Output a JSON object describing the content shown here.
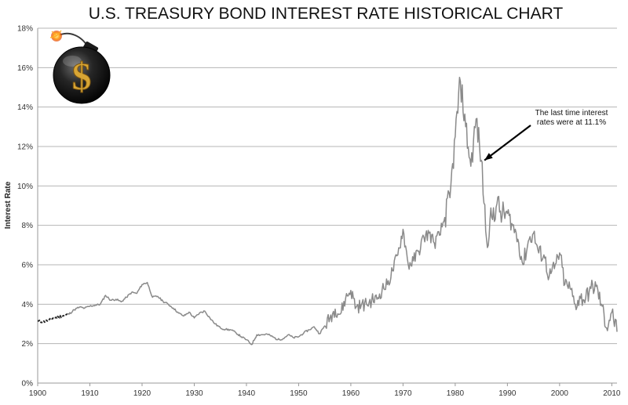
{
  "chart_data": {
    "type": "line",
    "title": "U.S. TREASURY BOND INTEREST RATE HISTORICAL CHART",
    "xlabel": "",
    "ylabel": "Interest Rate",
    "xlim": [
      1900,
      2011
    ],
    "ylim": [
      0,
      18
    ],
    "x_ticks": [
      1900,
      1910,
      1920,
      1930,
      1940,
      1950,
      1960,
      1970,
      1980,
      1990,
      2000,
      2010
    ],
    "y_ticks": [
      "0%",
      "2%",
      "4%",
      "6%",
      "8%",
      "10%",
      "12%",
      "14%",
      "16%",
      "18%"
    ],
    "grid": "horizontal",
    "legend": "none",
    "colors": {
      "line": "#8a8a8a",
      "early_segment": "#222222",
      "grid": "#b5b5b5"
    },
    "series": [
      {
        "values": [
          [
            1900,
            3.15
          ],
          [
            1901,
            3.1
          ],
          [
            1902,
            3.18
          ],
          [
            1903,
            3.3
          ],
          [
            1904,
            3.35
          ],
          [
            1905,
            3.42
          ],
          [
            1906,
            3.5
          ],
          [
            1907,
            3.72
          ],
          [
            1908,
            3.85
          ],
          [
            1909,
            3.8
          ],
          [
            1910,
            3.9
          ],
          [
            1911,
            3.95
          ],
          [
            1912,
            4.0
          ],
          [
            1913,
            4.45
          ],
          [
            1914,
            4.2
          ],
          [
            1915,
            4.25
          ],
          [
            1916,
            4.12
          ],
          [
            1917,
            4.35
          ],
          [
            1918,
            4.6
          ],
          [
            1919,
            4.55
          ],
          [
            1920,
            5.0
          ],
          [
            1921,
            5.1
          ],
          [
            1922,
            4.35
          ],
          [
            1923,
            4.4
          ],
          [
            1924,
            4.15
          ],
          [
            1925,
            4.0
          ],
          [
            1926,
            3.8
          ],
          [
            1927,
            3.55
          ],
          [
            1928,
            3.4
          ],
          [
            1929,
            3.6
          ],
          [
            1930,
            3.3
          ],
          [
            1931,
            3.55
          ],
          [
            1932,
            3.65
          ],
          [
            1933,
            3.3
          ],
          [
            1934,
            3.0
          ],
          [
            1935,
            2.8
          ],
          [
            1936,
            2.72
          ],
          [
            1937,
            2.7
          ],
          [
            1938,
            2.55
          ],
          [
            1939,
            2.35
          ],
          [
            1940,
            2.2
          ],
          [
            1941,
            1.95
          ],
          [
            1942,
            2.45
          ],
          [
            1943,
            2.45
          ],
          [
            1944,
            2.48
          ],
          [
            1945,
            2.35
          ],
          [
            1946,
            2.2
          ],
          [
            1947,
            2.25
          ],
          [
            1948,
            2.45
          ],
          [
            1949,
            2.3
          ],
          [
            1950,
            2.35
          ],
          [
            1951,
            2.55
          ],
          [
            1952,
            2.7
          ],
          [
            1953,
            2.85
          ],
          [
            1954,
            2.5
          ],
          [
            1955,
            2.9
          ],
          [
            1956,
            3.3
          ],
          [
            1957,
            3.75
          ],
          [
            1958,
            3.5
          ],
          [
            1959,
            4.3
          ],
          [
            1960,
            4.7
          ],
          [
            1961,
            3.85
          ],
          [
            1962,
            3.95
          ],
          [
            1963,
            4.0
          ],
          [
            1964,
            4.2
          ],
          [
            1965,
            4.25
          ],
          [
            1966,
            4.75
          ],
          [
            1967,
            5.0
          ],
          [
            1968,
            5.7
          ],
          [
            1969,
            6.5
          ],
          [
            1970,
            7.8
          ],
          [
            1971,
            6.0
          ],
          [
            1972,
            6.2
          ],
          [
            1973,
            6.7
          ],
          [
            1974,
            7.4
          ],
          [
            1975,
            7.6
          ],
          [
            1976,
            7.1
          ],
          [
            1977,
            7.5
          ],
          [
            1978,
            8.4
          ],
          [
            1979,
            9.4
          ],
          [
            1980,
            12.5
          ],
          [
            1981,
            15.3
          ],
          [
            1982,
            13.0
          ],
          [
            1983,
            11.0
          ],
          [
            1984,
            13.4
          ],
          [
            1985,
            11.3
          ],
          [
            1986,
            7.3
          ],
          [
            1987,
            8.4
          ],
          [
            1988,
            9.1
          ],
          [
            1989,
            8.5
          ],
          [
            1990,
            8.6
          ],
          [
            1991,
            8.0
          ],
          [
            1992,
            7.3
          ],
          [
            1993,
            6.0
          ],
          [
            1994,
            7.2
          ],
          [
            1995,
            7.6
          ],
          [
            1996,
            6.6
          ],
          [
            1997,
            6.5
          ],
          [
            1998,
            5.4
          ],
          [
            1999,
            5.8
          ],
          [
            2000,
            6.6
          ],
          [
            2001,
            5.0
          ],
          [
            2002,
            4.8
          ],
          [
            2003,
            4.0
          ],
          [
            2004,
            4.3
          ],
          [
            2005,
            4.3
          ],
          [
            2006,
            4.8
          ],
          [
            2007,
            4.9
          ],
          [
            2008,
            4.0
          ],
          [
            2009,
            2.8
          ],
          [
            2010,
            3.6
          ],
          [
            2011,
            2.6
          ]
        ]
      }
    ],
    "annotations": [
      {
        "text_lines": [
          "The last time interest",
          "rates were at 11.1%"
        ],
        "x": 1985,
        "y": 11.1
      }
    ]
  },
  "logo": {
    "icon": "dollar-bomb-icon",
    "glyph": "$"
  }
}
